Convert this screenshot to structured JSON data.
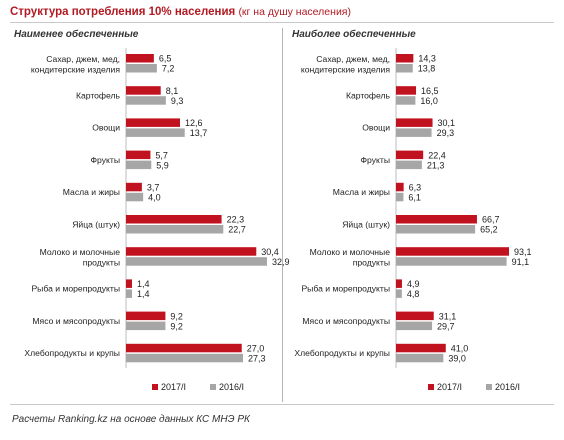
{
  "header": {
    "title": "Структура  потребления 10% населения",
    "subtitle": "(кг на душу населения)"
  },
  "footer": {
    "source": "Расчеты Ranking.kz на основе данных КС МНЭ РК"
  },
  "colors": {
    "series_2017": "#c1121f",
    "series_2016": "#a6a6a6",
    "title": "#b11a22"
  },
  "chart_data": [
    {
      "type": "bar",
      "orientation": "horizontal",
      "title": "Наименее обеспеченные",
      "categories": [
        [
          "Сахар, джем, мед,",
          "кондитерские изделия"
        ],
        [
          "Картофель"
        ],
        [
          "Овощи"
        ],
        [
          "Фрукты"
        ],
        [
          "Масла и жиры"
        ],
        [
          "Яйца (штук)"
        ],
        [
          "Молоко и молочные",
          "продукты"
        ],
        [
          "Рыба и морепродукты"
        ],
        [
          "Мясо и мясопродукты"
        ],
        [
          "Хлебопродукты и крупы"
        ]
      ],
      "series": [
        {
          "name": "2017/I",
          "values": [
            6.5,
            8.1,
            12.6,
            5.7,
            3.7,
            22.3,
            30.4,
            1.4,
            9.2,
            27.0
          ],
          "labels": [
            "6,5",
            "8,1",
            "12,6",
            "5,7",
            "3,7",
            "22,3",
            "30,4",
            "1,4",
            "9,2",
            "27,0"
          ]
        },
        {
          "name": "2016/I",
          "values": [
            7.2,
            9.3,
            13.7,
            5.9,
            4.0,
            22.7,
            32.9,
            1.4,
            9.2,
            27.3
          ],
          "labels": [
            "7,2",
            "9,3",
            "13,7",
            "5,9",
            "4,0",
            "22,7",
            "32,9",
            "1,4",
            "9,2",
            "27,3"
          ]
        }
      ],
      "xlim": [
        0,
        35
      ],
      "grid": false,
      "legend": "bottom"
    },
    {
      "type": "bar",
      "orientation": "horizontal",
      "title": "Наиболее обеспеченные",
      "categories": [
        [
          "Сахар, джем, мед,",
          "кондитерские изделия"
        ],
        [
          "Картофель"
        ],
        [
          "Овощи"
        ],
        [
          "Фрукты"
        ],
        [
          "Масла и жиры"
        ],
        [
          "Яйца (штук)"
        ],
        [
          "Молоко и молочные",
          "продукты"
        ],
        [
          "Рыба и морепродукты"
        ],
        [
          "Мясо и мясопродукты"
        ],
        [
          "Хлебопродукты и крупы"
        ]
      ],
      "series": [
        {
          "name": "2017/I",
          "values": [
            14.3,
            16.5,
            30.1,
            22.4,
            6.3,
            66.7,
            93.1,
            4.9,
            31.1,
            41.0
          ],
          "labels": [
            "14,3",
            "16,5",
            "30,1",
            "22,4",
            "6,3",
            "66,7",
            "93,1",
            "4,9",
            "31,1",
            "41,0"
          ]
        },
        {
          "name": "2016/I",
          "values": [
            13.8,
            16.0,
            29.3,
            21.3,
            6.1,
            65.2,
            91.1,
            4.8,
            29.7,
            39.0
          ],
          "labels": [
            "13,8",
            "16,0",
            "29,3",
            "21,3",
            "6,1",
            "65,2",
            "91,1",
            "4,8",
            "29,7",
            "39,0"
          ]
        }
      ],
      "xlim": [
        0,
        100
      ],
      "grid": false,
      "legend": "bottom"
    }
  ]
}
